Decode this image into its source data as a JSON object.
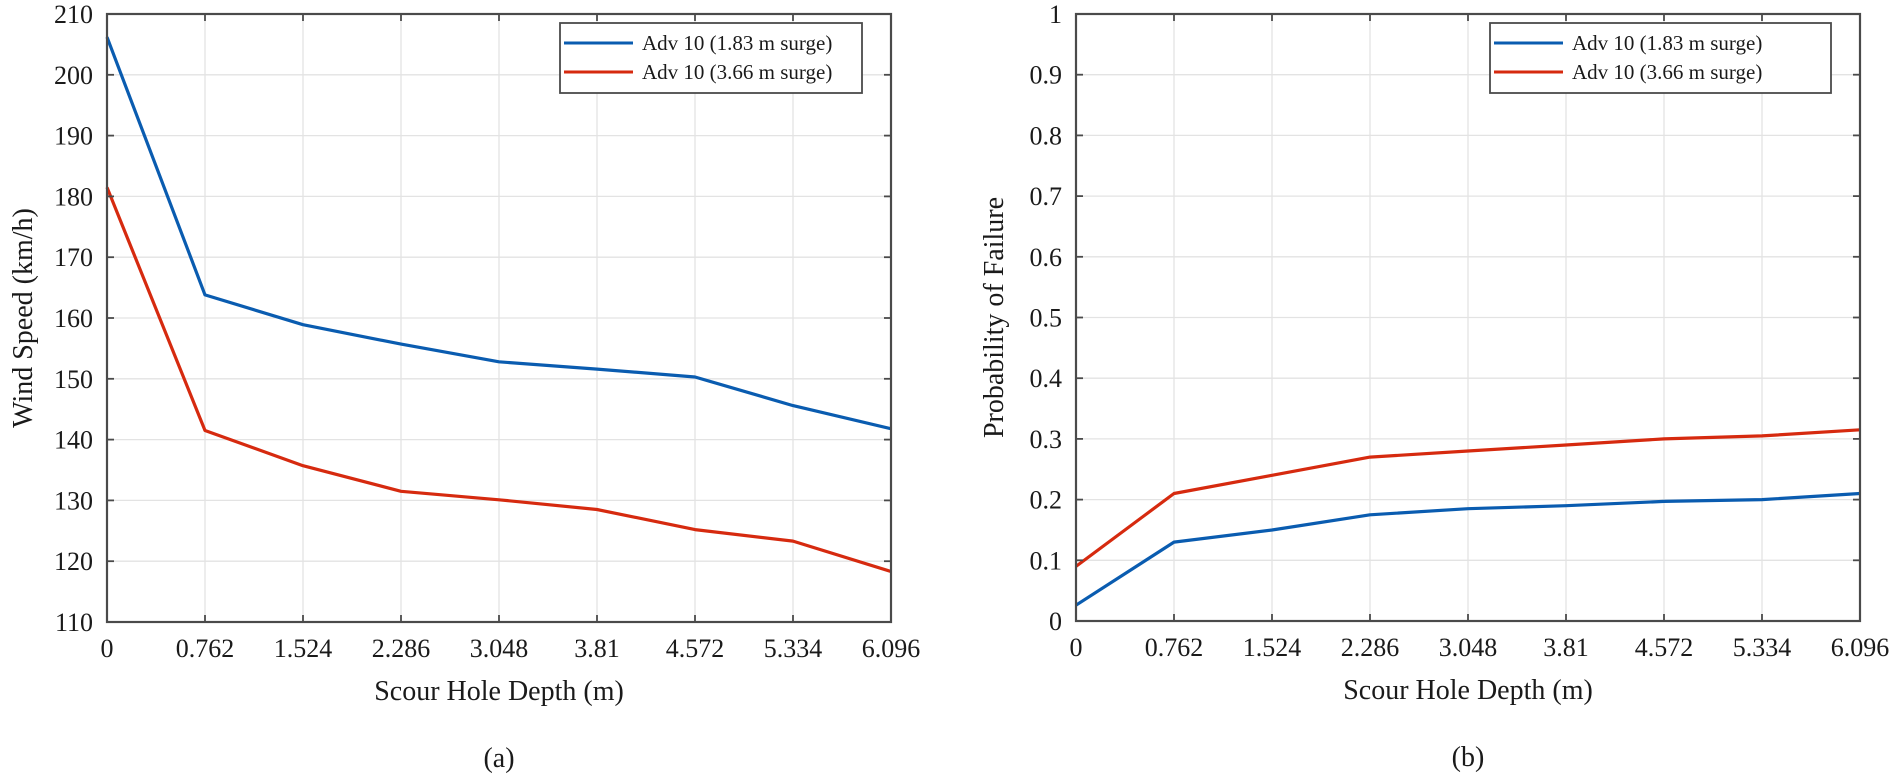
{
  "chart_data": [
    {
      "type": "line",
      "id": "a",
      "caption": "(a)",
      "title": "",
      "xlabel": "Scour Hole Depth (m)",
      "ylabel": "Wind Speed (km/h)",
      "x": [
        0,
        0.762,
        1.524,
        2.286,
        3.048,
        3.81,
        4.572,
        5.334,
        6.096
      ],
      "x_tick_labels": [
        "0",
        "0.762",
        "1.524",
        "2.286",
        "3.048",
        "3.81",
        "4.572",
        "5.334",
        "6.096"
      ],
      "y_ticks": [
        110,
        120,
        130,
        140,
        150,
        160,
        170,
        180,
        190,
        200,
        210
      ],
      "y_tick_labels": [
        "110",
        "120",
        "130",
        "140",
        "150",
        "160",
        "170",
        "180",
        "190",
        "200",
        "210"
      ],
      "ylim": [
        110,
        210
      ],
      "grid": true,
      "legend_position": "top-right",
      "series": [
        {
          "name": "Adv 10 (1.83 m surge)",
          "color": "#0a5cb0",
          "values": [
            206.2,
            163.8,
            158.9,
            155.7,
            152.8,
            151.6,
            150.3,
            145.6,
            141.8
          ]
        },
        {
          "name": "Adv 10 (3.66 m surge)",
          "color": "#d62a0f",
          "values": [
            181.5,
            141.5,
            135.7,
            131.5,
            130.1,
            128.5,
            125.2,
            123.3,
            118.3
          ]
        }
      ]
    },
    {
      "type": "line",
      "id": "b",
      "caption": "(b)",
      "title": "",
      "xlabel": "Scour Hole Depth (m)",
      "ylabel": "Probability of Failure",
      "x": [
        0,
        0.762,
        1.524,
        2.286,
        3.048,
        3.81,
        4.572,
        5.334,
        6.096
      ],
      "x_tick_labels": [
        "0",
        "0.762",
        "1.524",
        "2.286",
        "3.048",
        "3.81",
        "4.572",
        "5.334",
        "6.096"
      ],
      "y_ticks": [
        0,
        0.1,
        0.2,
        0.3,
        0.4,
        0.5,
        0.6,
        0.7,
        0.8,
        0.9,
        1
      ],
      "y_tick_labels": [
        "0",
        "0.1",
        "0.2",
        "0.3",
        "0.4",
        "0.5",
        "0.6",
        "0.7",
        "0.8",
        "0.9",
        "1"
      ],
      "ylim": [
        0,
        1
      ],
      "grid": true,
      "legend_position": "top-right",
      "series": [
        {
          "name": "Adv 10 (1.83 m surge)",
          "color": "#0a5cb0",
          "values": [
            0.026,
            0.13,
            0.15,
            0.175,
            0.185,
            0.19,
            0.197,
            0.2,
            0.21
          ]
        },
        {
          "name": "Adv 10 (3.66 m surge)",
          "color": "#d62a0f",
          "values": [
            0.09,
            0.21,
            0.24,
            0.27,
            0.28,
            0.29,
            0.3,
            0.305,
            0.315
          ]
        }
      ]
    }
  ]
}
